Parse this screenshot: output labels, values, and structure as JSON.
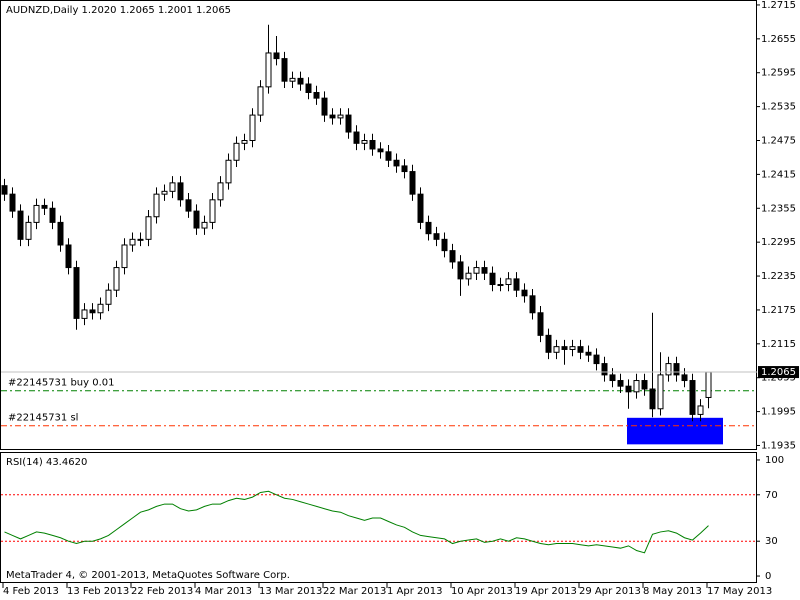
{
  "chart_data": [
    {
      "type": "candlestick",
      "title": "AUDNZD,Daily  1.2020 1.2065 1.2001 1.2065",
      "categories": [
        "4 Feb 2013",
        null,
        null,
        null,
        null,
        null,
        null,
        null,
        "13 Feb 2013",
        null,
        null,
        null,
        null,
        null,
        null,
        null,
        "22 Feb 2013",
        null,
        null,
        null,
        null,
        null,
        null,
        null,
        "4 Mar 2013",
        null,
        null,
        null,
        null,
        null,
        null,
        null,
        "13 Mar 2013",
        null,
        null,
        null,
        null,
        null,
        null,
        null,
        "22 Mar 2013",
        null,
        null,
        null,
        null,
        null,
        null,
        null,
        "1 Apr 2013",
        null,
        null,
        null,
        null,
        null,
        null,
        null,
        "10 Apr 2013",
        null,
        null,
        null,
        null,
        null,
        null,
        null,
        "19 Apr 2013",
        null,
        null,
        null,
        null,
        null,
        null,
        null,
        "29 Apr 2013",
        null,
        null,
        null,
        null,
        null,
        null,
        null,
        "8 May 2013",
        null,
        null,
        null,
        null,
        null,
        null,
        null,
        "17 May 2013"
      ],
      "open": [
        1.2395,
        1.238,
        1.235,
        1.23,
        1.233,
        1.236,
        1.2355,
        1.233,
        1.229,
        1.225,
        1.216,
        1.2175,
        1.217,
        1.2185,
        1.221,
        1.225,
        1.229,
        1.23,
        1.23,
        1.234,
        1.238,
        1.2385,
        1.24,
        1.237,
        1.235,
        1.232,
        1.233,
        1.237,
        1.24,
        1.244,
        1.247,
        1.2475,
        1.252,
        1.257,
        1.263,
        1.262,
        1.258,
        1.2585,
        1.2575,
        1.256,
        1.255,
        1.252,
        1.2515,
        1.252,
        1.249,
        1.247,
        1.2475,
        1.246,
        1.2455,
        1.244,
        1.243,
        1.242,
        1.238,
        1.233,
        1.231,
        1.23,
        1.228,
        1.226,
        1.223,
        1.224,
        1.225,
        1.224,
        1.222,
        1.222,
        1.223,
        1.221,
        1.22,
        1.217,
        1.213,
        1.21,
        1.211,
        1.2105,
        1.211,
        1.21,
        1.2095,
        1.208,
        1.206,
        1.205,
        1.204,
        1.203,
        1.205,
        1.2035,
        1.2,
        1.206,
        1.208,
        1.206,
        1.205,
        1.199,
        1.202
      ],
      "high": [
        1.2407,
        1.2392,
        1.2362,
        1.2342,
        1.2372,
        1.2372,
        1.2367,
        1.2342,
        1.2302,
        1.2262,
        1.2187,
        1.2187,
        1.2197,
        1.2222,
        1.2262,
        1.2302,
        1.2312,
        1.2312,
        1.2352,
        1.2392,
        1.2397,
        1.2412,
        1.2412,
        1.2382,
        1.2362,
        1.2342,
        1.2382,
        1.2412,
        1.2452,
        1.2482,
        1.2487,
        1.2532,
        1.2582,
        1.268,
        1.266,
        1.2632,
        1.2597,
        1.2597,
        1.2587,
        1.2572,
        1.2562,
        1.2532,
        1.2532,
        1.2532,
        1.2502,
        1.2487,
        1.2487,
        1.2472,
        1.2467,
        1.2452,
        1.2442,
        1.2432,
        1.2392,
        1.2342,
        1.2322,
        1.2312,
        1.2292,
        1.2272,
        1.2252,
        1.2262,
        1.2262,
        1.2252,
        1.2232,
        1.2242,
        1.2242,
        1.2222,
        1.2212,
        1.2182,
        1.2142,
        1.2122,
        1.2122,
        1.2122,
        1.2122,
        1.2112,
        1.2107,
        1.2092,
        1.2072,
        1.2062,
        1.2052,
        1.2062,
        1.2062,
        1.217,
        1.21,
        1.2092,
        1.2092,
        1.2072,
        1.2062,
        1.2017,
        1.2065
      ],
      "low": [
        1.2368,
        1.2338,
        1.2288,
        1.2288,
        1.2318,
        1.2343,
        1.2318,
        1.2278,
        1.2238,
        1.214,
        1.2148,
        1.2158,
        1.2158,
        1.2173,
        1.2198,
        1.2238,
        1.2278,
        1.2288,
        1.2288,
        1.2328,
        1.2368,
        1.2373,
        1.2358,
        1.2338,
        1.2308,
        1.2308,
        1.2318,
        1.2358,
        1.2388,
        1.2428,
        1.2458,
        1.2463,
        1.2508,
        1.2558,
        1.2608,
        1.2568,
        1.2568,
        1.2563,
        1.2548,
        1.2538,
        1.2508,
        1.2503,
        1.2503,
        1.2478,
        1.2458,
        1.2458,
        1.2448,
        1.2443,
        1.2428,
        1.2418,
        1.2408,
        1.2368,
        1.2318,
        1.2298,
        1.2288,
        1.2268,
        1.2248,
        1.22,
        1.2218,
        1.2228,
        1.2228,
        1.2208,
        1.2208,
        1.2208,
        1.2198,
        1.2188,
        1.2158,
        1.2118,
        1.2088,
        1.2088,
        1.2078,
        1.2093,
        1.2088,
        1.2083,
        1.2068,
        1.2048,
        1.2038,
        1.2028,
        1.2,
        1.2018,
        1.2023,
        1.1985,
        1.1988,
        1.2048,
        1.2048,
        1.2038,
        1.1978,
        1.1978,
        1.2001
      ],
      "close": [
        1.238,
        1.235,
        1.23,
        1.233,
        1.236,
        1.2355,
        1.233,
        1.229,
        1.225,
        1.216,
        1.2175,
        1.217,
        1.2185,
        1.221,
        1.225,
        1.229,
        1.23,
        1.23,
        1.234,
        1.238,
        1.2385,
        1.24,
        1.237,
        1.235,
        1.232,
        1.233,
        1.237,
        1.24,
        1.244,
        1.247,
        1.2475,
        1.252,
        1.257,
        1.263,
        1.262,
        1.258,
        1.2585,
        1.2575,
        1.256,
        1.255,
        1.252,
        1.2515,
        1.252,
        1.249,
        1.247,
        1.2475,
        1.246,
        1.2455,
        1.244,
        1.243,
        1.242,
        1.238,
        1.233,
        1.231,
        1.23,
        1.228,
        1.226,
        1.223,
        1.224,
        1.225,
        1.224,
        1.222,
        1.222,
        1.223,
        1.221,
        1.22,
        1.217,
        1.213,
        1.21,
        1.211,
        1.2105,
        1.211,
        1.21,
        1.2095,
        1.208,
        1.206,
        1.205,
        1.204,
        1.203,
        1.205,
        1.2035,
        1.2,
        1.206,
        1.208,
        1.206,
        1.205,
        1.199,
        1.2005,
        1.2065
      ],
      "up_color": "#ffffff",
      "down_color": "#000000",
      "line_color": "#000000",
      "ylim": [
        1.1927,
        1.2722
      ],
      "yticks": [
        1.2715,
        1.2655,
        1.2595,
        1.2535,
        1.2475,
        1.2415,
        1.2355,
        1.2295,
        1.2235,
        1.2175,
        1.2115,
        1.2055,
        1.1995,
        1.1935
      ],
      "bid_color": "#c0c0c0",
      "orders": [
        {
          "label": "#22145731 buy 0.01",
          "price": 1.2032,
          "color": "#008000"
        },
        {
          "label": "#22145731 sl",
          "price": 1.197,
          "color": "#ff3300"
        }
      ],
      "zone": {
        "top": 1.1984,
        "bottom": 1.1937,
        "color": "#0000ff"
      },
      "footer": "MetaTrader 4, © 2001-2013, MetaQuotes Software Corp."
    },
    {
      "type": "line",
      "title": "RSI(14) 43.4620",
      "values": [
        38,
        35,
        32,
        35,
        38,
        37,
        35,
        33,
        30,
        28,
        30,
        30,
        32,
        35,
        40,
        45,
        50,
        55,
        57,
        60,
        62,
        62,
        58,
        56,
        57,
        60,
        62,
        62,
        65,
        67,
        66,
        68,
        72,
        73,
        70,
        67,
        66,
        64,
        62,
        60,
        58,
        56,
        55,
        52,
        50,
        48,
        50,
        50,
        47,
        44,
        42,
        38,
        35,
        34,
        33,
        32,
        28,
        30,
        31,
        32,
        29,
        30,
        32,
        30,
        33,
        32,
        30,
        28,
        27,
        28,
        28,
        28,
        27,
        26,
        27,
        26,
        25,
        24,
        26,
        22,
        20,
        36,
        38,
        39,
        37,
        33,
        31,
        37,
        43.462
      ],
      "color": "#008000",
      "levels": [
        30,
        70
      ],
      "level_color": "#ff0000",
      "ylim": [
        -6,
        106
      ],
      "yticks": [
        0,
        30,
        70,
        100
      ]
    }
  ]
}
